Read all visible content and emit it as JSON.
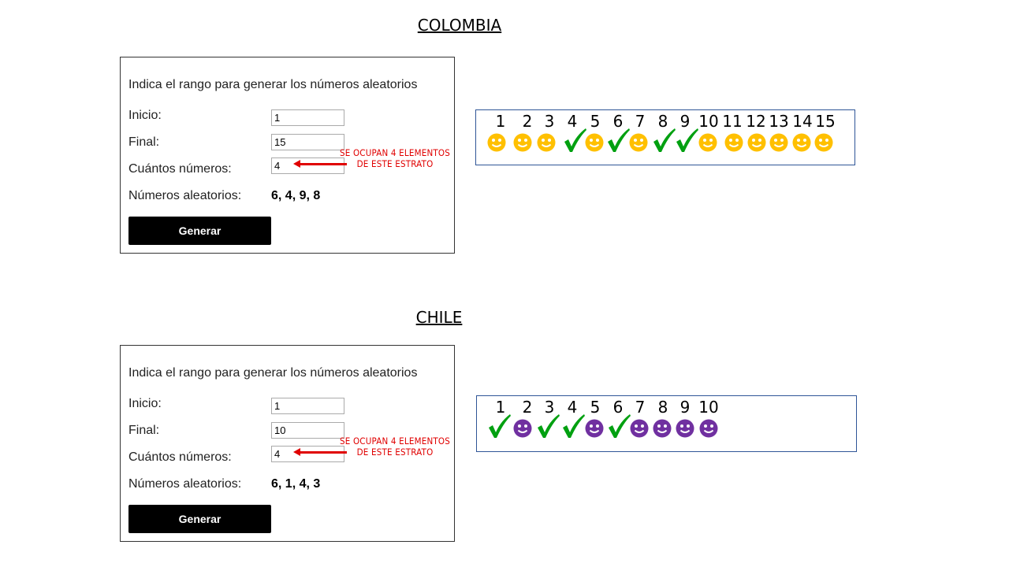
{
  "sections": [
    {
      "title": "COLOMBIA",
      "form": {
        "heading": "Indica el rango para generar los números aleatorios",
        "inicio_label": "Inicio:",
        "inicio_value": "1",
        "final_label": "Final:",
        "final_value": "15",
        "cuantos_label": "Cuántos números:",
        "cuantos_value": "4",
        "result_label": "Números aleatorios:",
        "result_value": "6, 4, 9, 8",
        "button_label": "Generar"
      },
      "annotation": {
        "line1": "SE OCUPAN 4 ELEMENTOS",
        "line2": "DE ESTE ESTRATO"
      },
      "strip": {
        "numbers": [
          "1",
          "2",
          "3",
          "4",
          "5",
          "6",
          "7",
          "8",
          "9",
          "10",
          "11",
          "12",
          "13",
          "14",
          "15"
        ],
        "icons": [
          "smiley",
          "smiley",
          "smiley",
          "check",
          "smiley",
          "check",
          "smiley",
          "check",
          "check",
          "smiley",
          "smiley",
          "smiley",
          "smiley",
          "smiley",
          "smiley"
        ],
        "smiley_color": "#ffc000"
      }
    },
    {
      "title": "CHILE",
      "form": {
        "heading": "Indica el rango para generar los números aleatorios",
        "inicio_label": "Inicio:",
        "inicio_value": "1",
        "final_label": "Final:",
        "final_value": "10",
        "cuantos_label": "Cuántos números:",
        "cuantos_value": "4",
        "result_label": "Números aleatorios:",
        "result_value": "6, 1, 4, 3",
        "button_label": "Generar"
      },
      "annotation": {
        "line1": "SE OCUPAN 4 ELEMENTOS",
        "line2": "DE ESTE ESTRATO"
      },
      "strip": {
        "numbers": [
          "1",
          "2",
          "3",
          "4",
          "5",
          "6",
          "7",
          "8",
          "9",
          "10"
        ],
        "icons": [
          "check",
          "smiley",
          "check",
          "check",
          "smiley",
          "check",
          "smiley",
          "smiley",
          "smiley",
          "smiley"
        ],
        "smiley_color": "#7030a0"
      }
    }
  ],
  "colors": {
    "check": "#00a010",
    "annotation": "#e00000",
    "strip_border": "#2f5597"
  }
}
